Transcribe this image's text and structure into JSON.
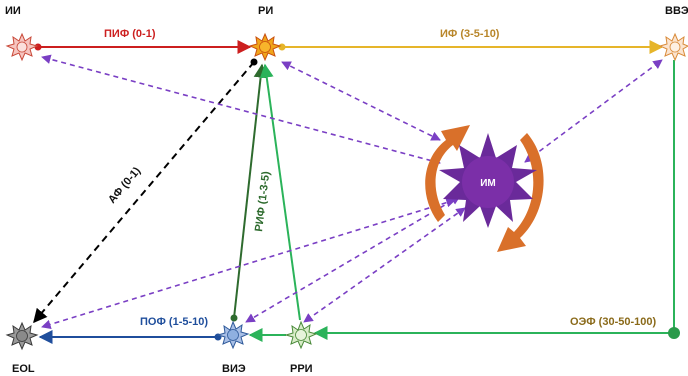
{
  "nodes": {
    "ii": {
      "label": "ИИ"
    },
    "ri": {
      "label": "РИ"
    },
    "vve": {
      "label": "ВВЭ"
    },
    "eol": {
      "label": "EOL"
    },
    "vie": {
      "label": "ВИЭ"
    },
    "rri": {
      "label": "РРИ"
    },
    "im": {
      "label": "ИМ"
    }
  },
  "edges": {
    "pif": {
      "label": "ПИФ (0-1)",
      "color": "#cc1f1f"
    },
    "if": {
      "label": "ИФ (3-5-10)",
      "color": "#e6b52a"
    },
    "af": {
      "label": "АФ (0-1)",
      "color": "#000000"
    },
    "rif": {
      "label": "РИФ (1-3-5)",
      "color": "#2e6b2e"
    },
    "pof": {
      "label": "ПОФ (1-5-10)",
      "color": "#1f4e9c"
    },
    "oef": {
      "label": "ОЭФ (30-50-100)",
      "color": "#2bb35a"
    }
  },
  "colors": {
    "dashed_purple": "#7a3fc4",
    "im_fill": "#7b2fa8",
    "cycle_arrow": "#d9702a"
  }
}
